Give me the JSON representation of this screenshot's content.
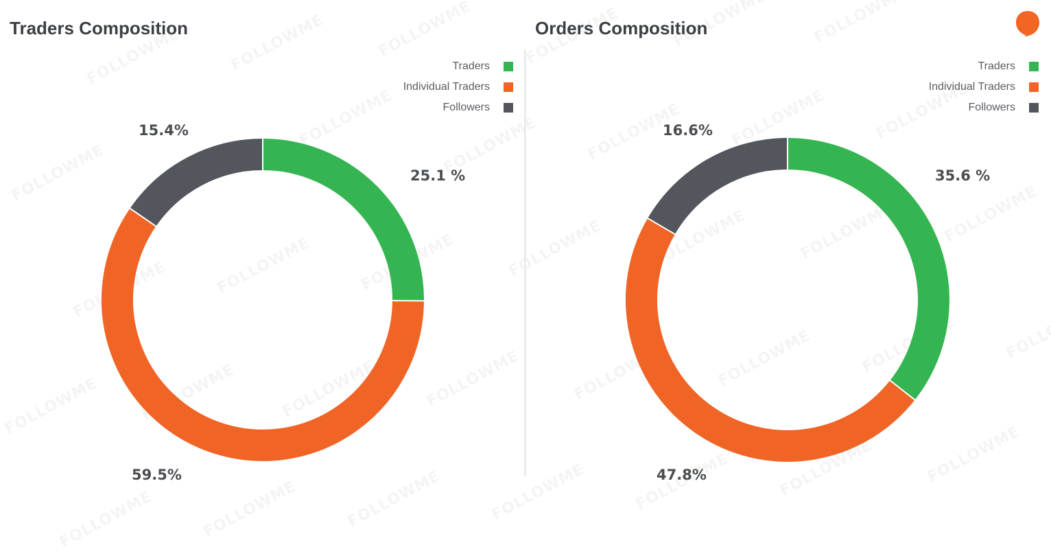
{
  "colors": {
    "traders": "#35b552",
    "individual_traders": "#f06426",
    "followers": "#53575d",
    "brand": "#f26522"
  },
  "watermark_text": "FOLLOWME",
  "legend": [
    {
      "label": "Traders",
      "color": "#35b552"
    },
    {
      "label": "Individual Traders",
      "color": "#f06426"
    },
    {
      "label": "Followers",
      "color": "#53575d"
    }
  ],
  "chart_data": [
    {
      "type": "pie",
      "title": "Traders Composition",
      "categories": [
        "Traders",
        "Individual Traders",
        "Followers"
      ],
      "values": [
        25.1,
        59.5,
        15.4
      ],
      "value_labels": [
        "25.1 %",
        "59.5%",
        "15.4%"
      ],
      "colors": [
        "#35b552",
        "#f06426",
        "#53575d"
      ],
      "legend_placement": "top-right",
      "donut": true
    },
    {
      "type": "pie",
      "title": "Orders Composition",
      "categories": [
        "Traders",
        "Individual Traders",
        "Followers"
      ],
      "values": [
        35.6,
        47.8,
        16.6
      ],
      "value_labels": [
        "35.6 %",
        "47.8%",
        "16.6%"
      ],
      "colors": [
        "#35b552",
        "#f06426",
        "#53575d"
      ],
      "legend_placement": "top-right",
      "donut": true
    }
  ]
}
